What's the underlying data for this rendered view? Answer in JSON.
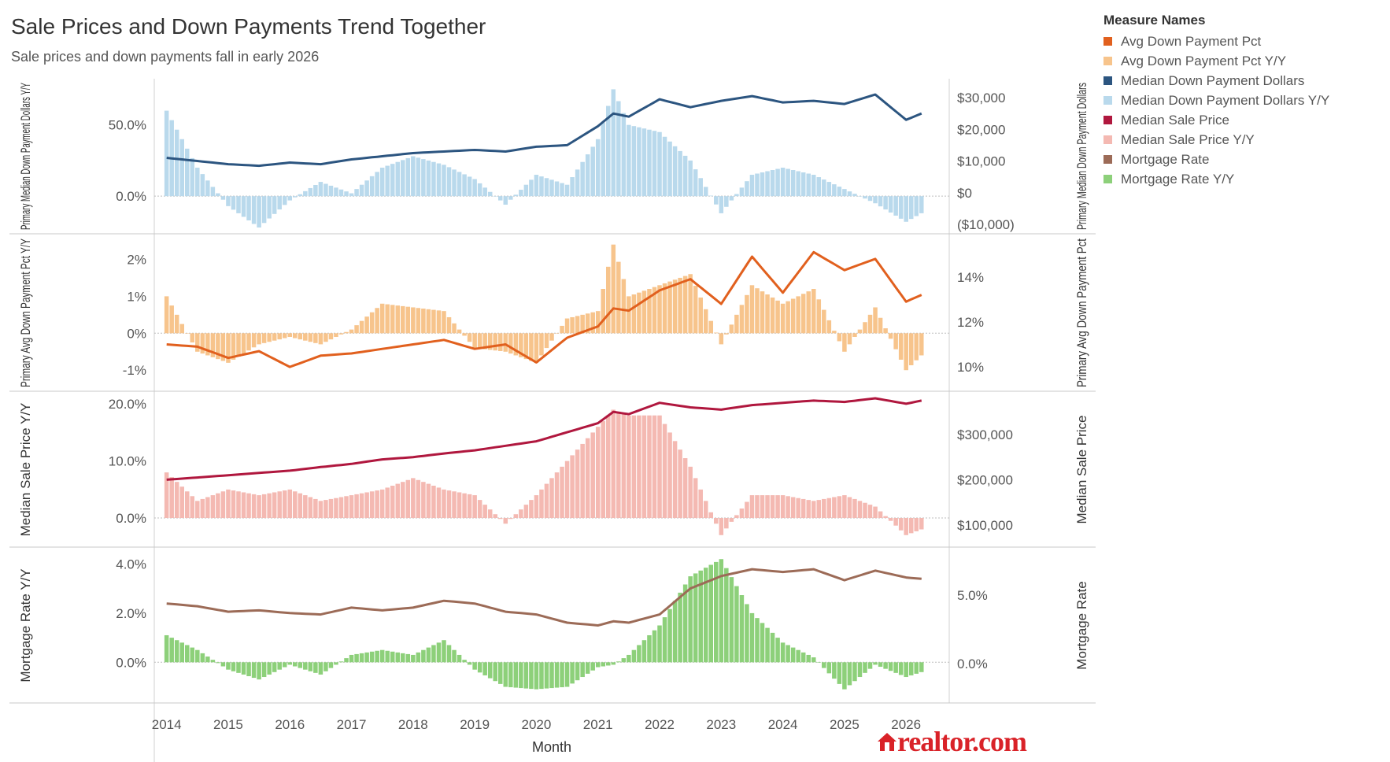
{
  "title": "Sale Prices and Down Payments Trend Together",
  "subtitle": "Sale prices and down payments fall in early 2026",
  "legend": {
    "title": "Measure Names",
    "items": [
      {
        "label": "Avg Down Payment Pct",
        "color": "#e1601e"
      },
      {
        "label": "Avg Down Payment Pct Y/Y",
        "color": "#f7c48c"
      },
      {
        "label": "Median Down Payment Dollars",
        "color": "#2c5580"
      },
      {
        "label": "Median Down Payment Dollars Y/Y",
        "color": "#b9d9ec"
      },
      {
        "label": "Median Sale Price",
        "color": "#b0173e"
      },
      {
        "label": "Median Sale Price Y/Y",
        "color": "#f4b9b2"
      },
      {
        "label": "Mortgage Rate",
        "color": "#9c6b57"
      },
      {
        "label": "Mortgage Rate Y/Y",
        "color": "#8dd07a"
      }
    ]
  },
  "xaxis": {
    "label": "Month",
    "ticks": [
      "2014",
      "2015",
      "2016",
      "2017",
      "2018",
      "2019",
      "2020",
      "2021",
      "2022",
      "2023",
      "2024",
      "2025",
      "2026"
    ]
  },
  "logo_text": "realtor.com",
  "chart_data": [
    {
      "type": "bar+line",
      "left_axis_label": "Primary Median Down Payment Dollars Y/Y",
      "right_axis_label": "Primary Median Down Payment Dollars",
      "left_ticks": [
        "50.0%",
        "0.0%"
      ],
      "right_ticks": [
        "$30,000",
        "$20,000",
        "$10,000",
        "$0",
        "($10,000)"
      ],
      "left_ylim": [
        -22,
        78
      ],
      "right_ylim": [
        -11000,
        34000
      ],
      "bar_series": "Median Down Payment Dollars Y/Y",
      "line_series": "Median Down Payment Dollars",
      "bar_color": "#b9d9ec",
      "line_color": "#2c5580",
      "x": [
        "2014-01",
        "2014-07",
        "2015-01",
        "2015-07",
        "2016-01",
        "2016-07",
        "2017-01",
        "2017-07",
        "2018-01",
        "2018-07",
        "2019-01",
        "2019-07",
        "2020-01",
        "2020-07",
        "2021-01",
        "2021-04",
        "2021-07",
        "2022-01",
        "2022-07",
        "2023-01",
        "2023-07",
        "2024-01",
        "2024-07",
        "2025-01",
        "2025-07",
        "2026-01",
        "2026-04"
      ],
      "bars": [
        60,
        20,
        -7,
        -22,
        -3,
        10,
        2,
        20,
        28,
        22,
        12,
        -6,
        15,
        8,
        40,
        75,
        50,
        45,
        25,
        -12,
        15,
        20,
        15,
        5,
        -5,
        -18,
        -12
      ],
      "line": [
        11000,
        10000,
        9000,
        8500,
        9500,
        9000,
        10500,
        11500,
        12500,
        13000,
        13500,
        13000,
        14500,
        15000,
        21000,
        25000,
        24000,
        29500,
        27000,
        29000,
        30500,
        28500,
        29000,
        28000,
        31000,
        23000,
        25000
      ]
    },
    {
      "type": "bar+line",
      "left_axis_label": "Primary Avg Down Payment Pct Y/Y",
      "right_axis_label": "Primary Avg Down Payment Pct",
      "left_ticks": [
        "2%",
        "1%",
        "0%",
        "-1%"
      ],
      "right_ticks": [
        "14%",
        "12%",
        "10%"
      ],
      "left_ylim": [
        -1.4,
        2.5
      ],
      "right_ylim": [
        9.2,
        15.6
      ],
      "bar_series": "Avg Down Payment Pct Y/Y",
      "line_series": "Avg Down Payment Pct",
      "bar_color": "#f7c48c",
      "line_color": "#e1601e",
      "x": [
        "2014-01",
        "2014-07",
        "2015-01",
        "2015-07",
        "2016-01",
        "2016-07",
        "2017-01",
        "2017-07",
        "2018-01",
        "2018-07",
        "2019-01",
        "2019-07",
        "2020-01",
        "2020-07",
        "2021-01",
        "2021-04",
        "2021-07",
        "2022-01",
        "2022-07",
        "2023-01",
        "2023-07",
        "2024-01",
        "2024-07",
        "2025-01",
        "2025-07",
        "2026-01",
        "2026-04"
      ],
      "bars": [
        1.0,
        -0.5,
        -0.8,
        -0.3,
        -0.1,
        -0.3,
        0.1,
        0.8,
        0.7,
        0.6,
        -0.4,
        -0.5,
        -0.8,
        0.4,
        0.6,
        2.4,
        1.0,
        1.3,
        1.6,
        -0.3,
        1.3,
        0.8,
        1.2,
        -0.5,
        0.7,
        -1.0,
        -0.6
      ],
      "line": [
        11.0,
        10.9,
        10.4,
        10.7,
        10.0,
        10.5,
        10.6,
        10.8,
        11.0,
        11.2,
        10.8,
        11.0,
        10.2,
        11.3,
        11.8,
        12.6,
        12.5,
        13.4,
        13.9,
        12.8,
        14.9,
        13.3,
        15.1,
        14.3,
        14.8,
        12.9,
        13.2
      ]
    },
    {
      "type": "bar+line",
      "left_axis_label": "Median Sale Price Y/Y",
      "right_axis_label": "Median Sale Price",
      "left_ticks": [
        "20.0%",
        "10.0%",
        "0.0%"
      ],
      "right_ticks": [
        "$300,000",
        "$200,000",
        "$100,000"
      ],
      "left_ylim": [
        -4,
        21
      ],
      "right_ylim": [
        65000,
        380000
      ],
      "bar_series": "Median Sale Price Y/Y",
      "line_series": "Median Sale Price",
      "bar_color": "#f4b9b2",
      "line_color": "#b0173e",
      "x": [
        "2014-01",
        "2014-07",
        "2015-01",
        "2015-07",
        "2016-01",
        "2016-07",
        "2017-01",
        "2017-07",
        "2018-01",
        "2018-07",
        "2019-01",
        "2019-07",
        "2020-01",
        "2020-07",
        "2021-01",
        "2021-04",
        "2021-07",
        "2022-01",
        "2022-07",
        "2023-01",
        "2023-07",
        "2024-01",
        "2024-07",
        "2025-01",
        "2025-07",
        "2026-01",
        "2026-04"
      ],
      "bars": [
        8,
        3,
        5,
        4,
        5,
        3,
        4,
        5,
        7,
        5,
        4,
        -1,
        4,
        10,
        16,
        19,
        18,
        18,
        9,
        -3,
        4,
        4,
        3,
        4,
        2,
        -3,
        -2
      ],
      "line": [
        200000,
        205000,
        210000,
        215000,
        220000,
        228000,
        235000,
        245000,
        250000,
        258000,
        265000,
        275000,
        285000,
        305000,
        325000,
        350000,
        345000,
        370000,
        360000,
        355000,
        365000,
        370000,
        375000,
        372000,
        380000,
        368000,
        375000
      ]
    },
    {
      "type": "bar+line",
      "left_axis_label": "Mortgage Rate Y/Y",
      "right_axis_label": "Mortgage Rate",
      "left_ticks": [
        "4.0%",
        "2.0%",
        "0.0%"
      ],
      "right_ticks": [
        "5.0%",
        "0.0%"
      ],
      "left_ylim": [
        -1.4,
        4.4
      ],
      "right_ylim": [
        -2.4,
        8.0
      ],
      "bar_series": "Mortgage Rate Y/Y",
      "line_series": "Mortgage Rate",
      "bar_color": "#8dd07a",
      "line_color": "#9c6b57",
      "x": [
        "2014-01",
        "2014-07",
        "2015-01",
        "2015-07",
        "2016-01",
        "2016-07",
        "2017-01",
        "2017-07",
        "2018-01",
        "2018-07",
        "2019-01",
        "2019-07",
        "2020-01",
        "2020-07",
        "2021-01",
        "2021-04",
        "2021-07",
        "2022-01",
        "2022-07",
        "2023-01",
        "2023-07",
        "2024-01",
        "2024-07",
        "2025-01",
        "2025-07",
        "2026-01",
        "2026-04"
      ],
      "bars": [
        1.1,
        0.5,
        -0.3,
        -0.7,
        -0.1,
        -0.5,
        0.3,
        0.5,
        0.3,
        0.9,
        -0.3,
        -1.0,
        -1.1,
        -1.0,
        -0.2,
        -0.1,
        0.3,
        1.5,
        3.5,
        4.2,
        2.0,
        0.8,
        0.2,
        -1.1,
        -0.1,
        -0.6,
        -0.4
      ],
      "line": [
        4.4,
        4.2,
        3.8,
        3.9,
        3.7,
        3.6,
        4.1,
        3.9,
        4.1,
        4.6,
        4.4,
        3.8,
        3.6,
        3.0,
        2.8,
        3.1,
        3.0,
        3.6,
        5.5,
        6.4,
        6.9,
        6.7,
        6.9,
        6.1,
        6.8,
        6.3,
        6.2
      ]
    }
  ]
}
